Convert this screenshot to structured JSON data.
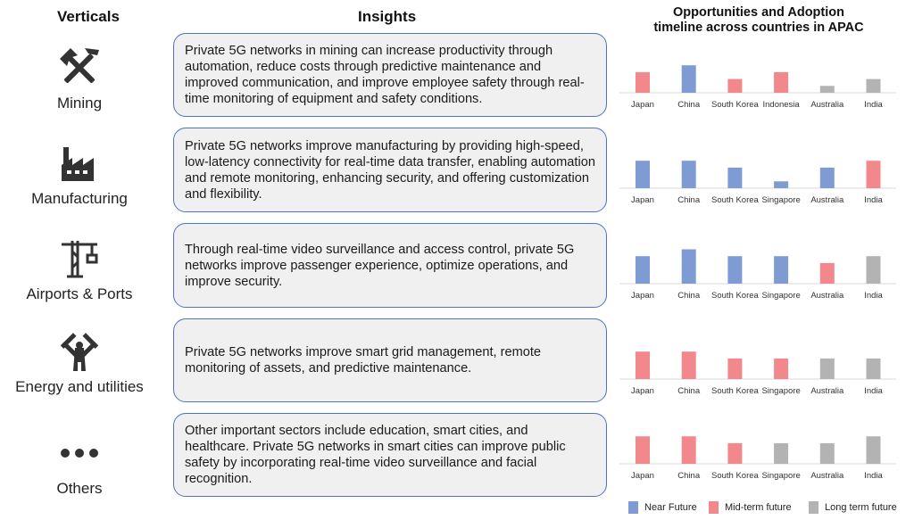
{
  "headers": {
    "verticals": "Verticals",
    "insights": "Insights",
    "chart_title_line1": "Opportunities and Adoption",
    "chart_title_line2": "timeline across countries in APAC"
  },
  "colors": {
    "near": "#7f9bd3",
    "mid": "#f2888c",
    "long": "#b3b3b3",
    "box_border": "#4a74c9",
    "box_fill": "#f0f0f0"
  },
  "rows": [
    {
      "vertical": "Mining",
      "icon": "mining-tools-icon",
      "insight": "Private 5G networks in mining can increase productivity through automation, reduce costs through predictive maintenance and improved communication, and improve employee safety through real-time monitoring of equipment and safety conditions."
    },
    {
      "vertical": "Manufacturing",
      "icon": "factory-icon",
      "insight": "Private 5G networks improve manufacturing by providing high-speed, low-latency connectivity for real-time data transfer, enabling automation and remote monitoring, enhancing security, and offering customization and flexibility."
    },
    {
      "vertical": "Airports & Ports",
      "icon": "crane-icon",
      "insight": "Through real-time video surveillance and access control, private 5G networks improve passenger experience, optimize operations, and improve security."
    },
    {
      "vertical": "Energy and utilities",
      "icon": "windmill-icon",
      "insight": "Private 5G networks improve smart grid management, remote monitoring of assets, and predictive maintenance."
    },
    {
      "vertical": "Others",
      "icon": "ellipsis-icon",
      "insight": "Other important sectors include education, smart cities, and healthcare. Private 5G networks in smart cities can improve public safety by incorporating real-time video surveillance and facial recognition."
    }
  ],
  "chart_data": [
    {
      "type": "bar",
      "categories": [
        "Japan",
        "China",
        "South Korea",
        "Indonesia",
        "Australia",
        "India"
      ],
      "values": [
        3,
        4,
        2,
        3,
        1,
        2
      ],
      "timeline": [
        "mid",
        "near",
        "mid",
        "mid",
        "long",
        "long"
      ],
      "ylim": [
        0,
        4
      ]
    },
    {
      "type": "bar",
      "categories": [
        "Japan",
        "China",
        "South Korea",
        "Singapore",
        "Australia",
        "India"
      ],
      "values": [
        4,
        4,
        3,
        1,
        3,
        4
      ],
      "timeline": [
        "near",
        "near",
        "near",
        "near",
        "near",
        "mid"
      ],
      "ylim": [
        0,
        4
      ]
    },
    {
      "type": "bar",
      "categories": [
        "Japan",
        "China",
        "South Korea",
        "Singapore",
        "Australia",
        "India"
      ],
      "values": [
        4,
        5,
        4,
        4,
        3,
        4
      ],
      "timeline": [
        "near",
        "near",
        "near",
        "near",
        "mid",
        "long"
      ],
      "ylim": [
        0,
        5
      ]
    },
    {
      "type": "bar",
      "categories": [
        "Japan",
        "China",
        "South Korea",
        "Singapore",
        "Australia",
        "India"
      ],
      "values": [
        4,
        4,
        3,
        3,
        3,
        3
      ],
      "timeline": [
        "mid",
        "mid",
        "mid",
        "mid",
        "long",
        "long"
      ],
      "ylim": [
        0,
        4
      ]
    },
    {
      "type": "bar",
      "categories": [
        "Japan",
        "China",
        "South Korea",
        "Singapore",
        "Australia",
        "India"
      ],
      "values": [
        4,
        4,
        3,
        3,
        3,
        4
      ],
      "timeline": [
        "mid",
        "mid",
        "mid",
        "long",
        "long",
        "long"
      ],
      "ylim": [
        0,
        4
      ]
    }
  ],
  "legend": [
    {
      "key": "near",
      "label": "Near Future"
    },
    {
      "key": "mid",
      "label": "Mid-term future"
    },
    {
      "key": "long",
      "label": "Long term future"
    }
  ]
}
